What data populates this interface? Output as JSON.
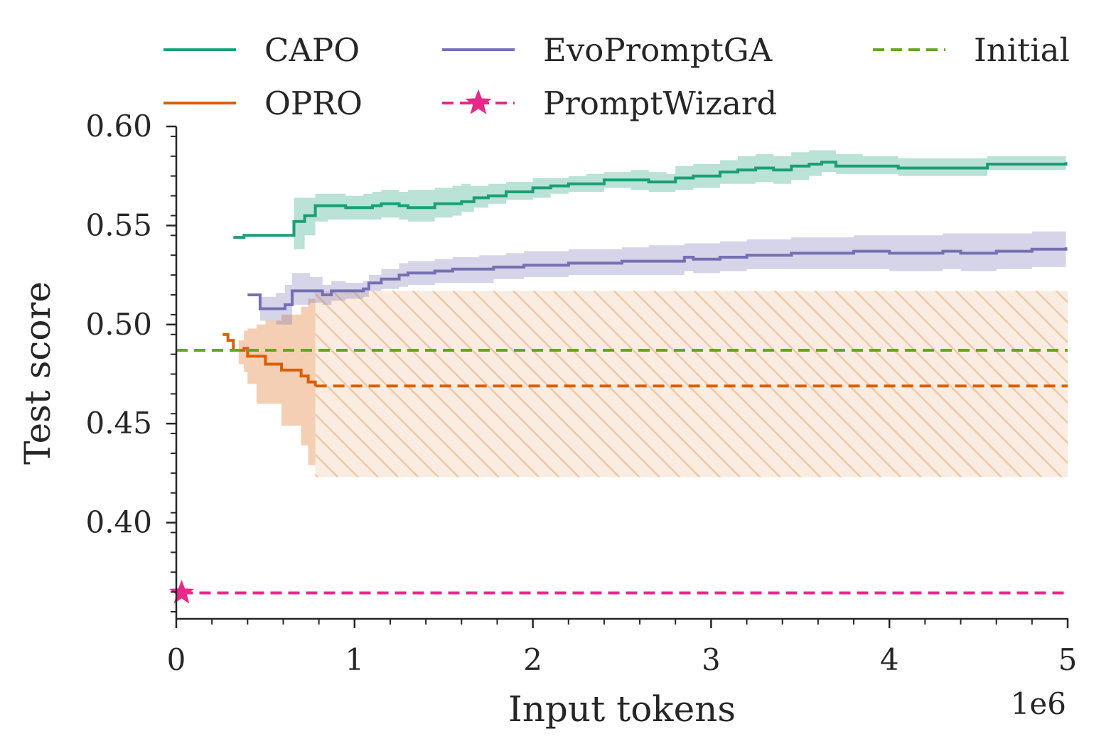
{
  "chart_data": {
    "type": "line",
    "xlabel": "Input tokens",
    "ylabel": "Test score",
    "x_offset_label": "1e6",
    "xlim": [
      0,
      5000000
    ],
    "ylim": [
      0.3525,
      0.6
    ],
    "xticks": [
      {
        "value": 0,
        "label": "0"
      },
      {
        "value": 1000000,
        "label": "1"
      },
      {
        "value": 2000000,
        "label": "2"
      },
      {
        "value": 3000000,
        "label": "3"
      },
      {
        "value": 4000000,
        "label": "4"
      },
      {
        "value": 5000000,
        "label": "5"
      }
    ],
    "yticks": [
      {
        "value": 0.4,
        "label": "0.40"
      },
      {
        "value": 0.45,
        "label": "0.45"
      },
      {
        "value": 0.5,
        "label": "0.50"
      },
      {
        "value": 0.55,
        "label": "0.55"
      },
      {
        "value": 0.6,
        "label": "0.60"
      }
    ],
    "legend_position": "top",
    "grid": false,
    "series": [
      {
        "name": "CAPO",
        "color": "#1b9e77",
        "style": "solid",
        "step": true,
        "band_color": "#1b9e77",
        "x": [
          320000,
          380000,
          450000,
          520000,
          600000,
          660000,
          720000,
          780000,
          850000,
          950000,
          1050000,
          1100000,
          1150000,
          1250000,
          1300000,
          1400000,
          1450000,
          1550000,
          1600000,
          1650000,
          1670000,
          1750000,
          1800000,
          1850000,
          1950000,
          2000000,
          2100000,
          2150000,
          2200000,
          2300000,
          2400000,
          2500000,
          2550000,
          2650000,
          2750000,
          2800000,
          2900000,
          3000000,
          3050000,
          3150000,
          3250000,
          3350000,
          3450000,
          3550000,
          3620000,
          3700000,
          3850000,
          3950000,
          4050000,
          4250000,
          4450000,
          4550000,
          4800000,
          4990000
        ],
        "y": [
          0.544,
          0.545,
          0.545,
          0.545,
          0.545,
          0.552,
          0.555,
          0.56,
          0.56,
          0.559,
          0.559,
          0.56,
          0.561,
          0.56,
          0.559,
          0.559,
          0.561,
          0.561,
          0.562,
          0.562,
          0.564,
          0.565,
          0.565,
          0.567,
          0.567,
          0.569,
          0.57,
          0.57,
          0.571,
          0.571,
          0.573,
          0.573,
          0.573,
          0.572,
          0.572,
          0.574,
          0.575,
          0.575,
          0.577,
          0.578,
          0.579,
          0.578,
          0.58,
          0.581,
          0.582,
          0.58,
          0.58,
          0.58,
          0.579,
          0.579,
          0.579,
          0.581,
          0.581,
          0.582
        ],
        "lower": [
          0.544,
          0.545,
          0.545,
          0.545,
          0.545,
          0.538,
          0.545,
          0.552,
          0.553,
          0.553,
          0.553,
          0.553,
          0.554,
          0.553,
          0.552,
          0.552,
          0.554,
          0.555,
          0.557,
          0.557,
          0.559,
          0.561,
          0.561,
          0.563,
          0.563,
          0.564,
          0.566,
          0.566,
          0.567,
          0.567,
          0.569,
          0.569,
          0.568,
          0.567,
          0.567,
          0.568,
          0.569,
          0.569,
          0.571,
          0.571,
          0.572,
          0.571,
          0.573,
          0.575,
          0.577,
          0.576,
          0.576,
          0.576,
          0.575,
          0.575,
          0.575,
          0.578,
          0.578,
          0.579
        ],
        "upper": [
          0.544,
          0.545,
          0.545,
          0.545,
          0.545,
          0.564,
          0.564,
          0.566,
          0.566,
          0.565,
          0.566,
          0.567,
          0.568,
          0.567,
          0.568,
          0.568,
          0.569,
          0.57,
          0.571,
          0.57,
          0.57,
          0.571,
          0.571,
          0.572,
          0.572,
          0.574,
          0.574,
          0.574,
          0.575,
          0.576,
          0.577,
          0.577,
          0.578,
          0.577,
          0.576,
          0.58,
          0.581,
          0.581,
          0.583,
          0.585,
          0.586,
          0.585,
          0.587,
          0.588,
          0.588,
          0.586,
          0.585,
          0.585,
          0.584,
          0.584,
          0.584,
          0.585,
          0.585,
          0.585
        ]
      },
      {
        "name": "OPRO",
        "color": "#d95f02",
        "style": "solid",
        "step": true,
        "band_color": "#d95f02",
        "x": [
          260000,
          290000,
          320000,
          350000,
          380000,
          400000,
          450000,
          500000,
          590000,
          700000,
          740000,
          780000
        ],
        "y": [
          0.495,
          0.492,
          0.487,
          0.487,
          0.488,
          0.484,
          0.484,
          0.48,
          0.477,
          0.474,
          0.471,
          0.469
        ],
        "lower": [
          0.495,
          0.492,
          0.487,
          0.48,
          0.476,
          0.47,
          0.46,
          0.46,
          0.449,
          0.439,
          0.429,
          0.423
        ],
        "upper": [
          0.495,
          0.492,
          0.487,
          0.492,
          0.497,
          0.498,
          0.5,
          0.502,
          0.505,
          0.509,
          0.513,
          0.517
        ],
        "extension": {
          "x": [
            780000,
            5000000
          ],
          "y": 0.469,
          "lower": 0.423,
          "upper": 0.517,
          "style": "dashed",
          "band": "hatched"
        }
      },
      {
        "name": "EvoPromptGA",
        "color": "#7570b3",
        "style": "solid",
        "step": true,
        "band_color": "#7570b3",
        "x": [
          400000,
          430000,
          470000,
          560000,
          610000,
          650000,
          750000,
          820000,
          870000,
          950000,
          1050000,
          1080000,
          1150000,
          1250000,
          1300000,
          1400000,
          1450000,
          1550000,
          1700000,
          1780000,
          1850000,
          1950000,
          2000000,
          2100000,
          2200000,
          2250000,
          2300000,
          2500000,
          2600000,
          2650000,
          2850000,
          2900000,
          3000000,
          3050000,
          3200000,
          3450000,
          3600000,
          3800000,
          4000000,
          4200000,
          4300000,
          4400000,
          4500000,
          4600000,
          4800000,
          4990000
        ],
        "y": [
          0.515,
          0.515,
          0.508,
          0.508,
          0.51,
          0.517,
          0.517,
          0.515,
          0.517,
          0.517,
          0.518,
          0.521,
          0.523,
          0.525,
          0.526,
          0.526,
          0.527,
          0.528,
          0.528,
          0.529,
          0.529,
          0.53,
          0.53,
          0.53,
          0.531,
          0.531,
          0.531,
          0.532,
          0.532,
          0.532,
          0.534,
          0.533,
          0.533,
          0.534,
          0.535,
          0.536,
          0.536,
          0.537,
          0.536,
          0.536,
          0.537,
          0.536,
          0.536,
          0.537,
          0.538,
          0.539
        ],
        "lower": [
          0.515,
          0.515,
          0.502,
          0.5,
          0.5,
          0.51,
          0.511,
          0.51,
          0.512,
          0.513,
          0.514,
          0.517,
          0.518,
          0.519,
          0.52,
          0.52,
          0.521,
          0.521,
          0.521,
          0.523,
          0.523,
          0.524,
          0.524,
          0.524,
          0.525,
          0.525,
          0.525,
          0.525,
          0.525,
          0.525,
          0.527,
          0.526,
          0.526,
          0.527,
          0.528,
          0.528,
          0.528,
          0.528,
          0.527,
          0.527,
          0.528,
          0.527,
          0.527,
          0.528,
          0.529,
          0.53
        ],
        "upper": [
          0.515,
          0.515,
          0.514,
          0.516,
          0.52,
          0.526,
          0.524,
          0.52,
          0.522,
          0.521,
          0.522,
          0.525,
          0.528,
          0.531,
          0.532,
          0.532,
          0.533,
          0.534,
          0.535,
          0.535,
          0.536,
          0.537,
          0.537,
          0.537,
          0.538,
          0.538,
          0.538,
          0.539,
          0.539,
          0.54,
          0.541,
          0.541,
          0.541,
          0.542,
          0.543,
          0.544,
          0.544,
          0.545,
          0.545,
          0.545,
          0.546,
          0.546,
          0.546,
          0.546,
          0.547,
          0.548
        ]
      },
      {
        "name": "PromptWizard",
        "color": "#e7298a",
        "style": "dashed",
        "marker": "star",
        "x": [
          30000,
          5000000
        ],
        "y": [
          0.3645,
          0.3645
        ]
      },
      {
        "name": "Initial",
        "color": "#66a61e",
        "style": "dashed",
        "x": [
          0,
          5000000
        ],
        "y": [
          0.487,
          0.487
        ]
      }
    ]
  }
}
